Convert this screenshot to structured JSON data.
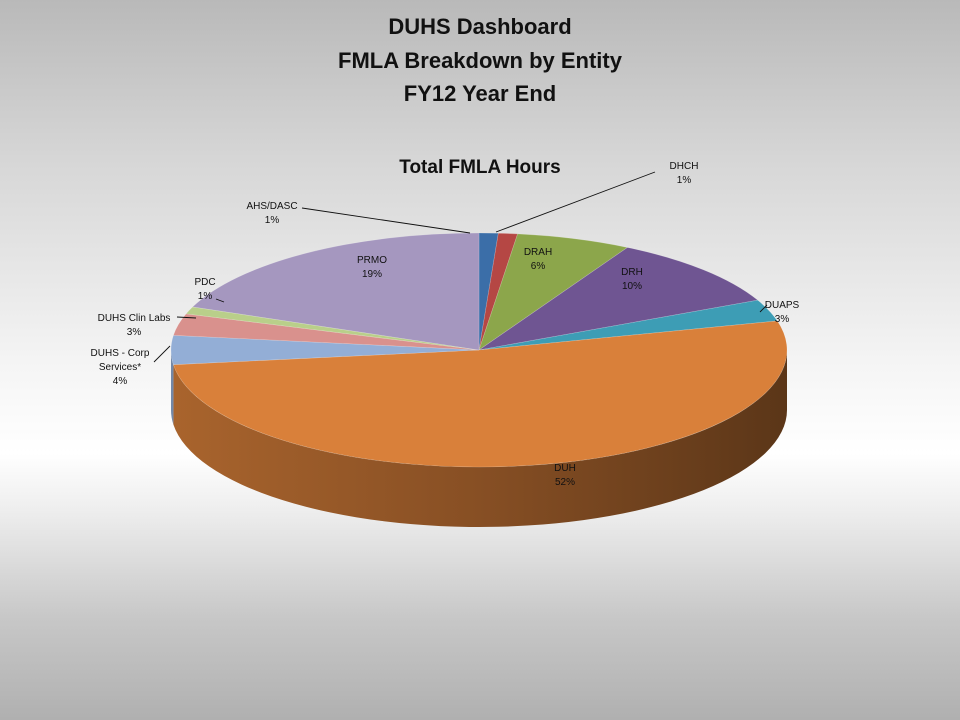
{
  "chart_data": {
    "type": "pie",
    "title": [
      "DUHS Dashboard",
      "FMLA Breakdown by Entity",
      "FY12 Year End"
    ],
    "subtitle": "Total FMLA Hours",
    "legend": "none",
    "slices": [
      {
        "label": "AHS/DASC",
        "value": 1,
        "value_label": "1%",
        "color": "#3b6ea8"
      },
      {
        "label": "DHCH",
        "value": 1,
        "value_label": "1%",
        "color": "#b54744"
      },
      {
        "label": "DRAH",
        "value": 6,
        "value_label": "6%",
        "color": "#8ca64b"
      },
      {
        "label": "DRH",
        "value": 10,
        "value_label": "10%",
        "color": "#6f5592"
      },
      {
        "label": "DUAPS",
        "value": 3,
        "value_label": "3%",
        "color": "#3d9db5"
      },
      {
        "label": "DUH",
        "value": 52,
        "value_label": "52%",
        "color": "#d9803a"
      },
      {
        "label": "DUHS - Corp Services*",
        "value": 4,
        "value_label": "4%",
        "color": "#93aed6"
      },
      {
        "label": "DUHS Clin Labs",
        "value": 3,
        "value_label": "3%",
        "color": "#d9918d"
      },
      {
        "label": "PDC",
        "value": 1,
        "value_label": "1%",
        "color": "#b9cf8a"
      },
      {
        "label": "PRMO",
        "value": 19,
        "value_label": "19%",
        "color": "#a597bf"
      }
    ]
  }
}
